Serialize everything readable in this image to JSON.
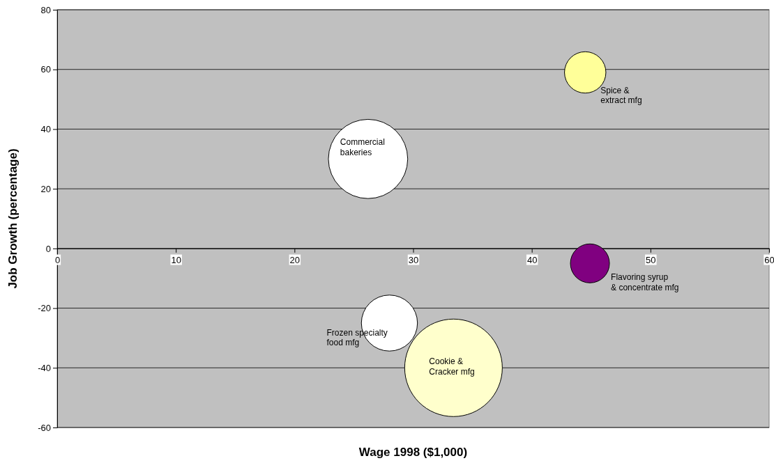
{
  "chart_data": {
    "type": "bubble",
    "xlabel": "Wage 1998 ($1,000)",
    "ylabel": "Job Growth (percentage)",
    "x": [
      44.5,
      26.2,
      44.9,
      28,
      33.4
    ],
    "values": [
      59,
      30,
      -5,
      -25,
      -40
    ],
    "sizes": [
      0.18,
      0.66,
      0.16,
      0.33,
      1
    ],
    "colors": [
      "#ffff99",
      "#ffffff",
      "#800080",
      "#ffffff",
      "#ffffcc"
    ],
    "xlim": [
      0,
      60
    ],
    "xticks": [
      0,
      10,
      20,
      30,
      40,
      50,
      60
    ],
    "ylim": [
      -60,
      80
    ],
    "yticks": [
      -60,
      -40,
      -20,
      0,
      20,
      40,
      60,
      80
    ],
    "grid": "y",
    "annotations": [
      {
        "text": "Spice &\nextract mfg",
        "x": 44.5,
        "y": 59
      },
      {
        "text": "Commercial\nbakeries",
        "x": 26.2,
        "y": 30
      },
      {
        "text": "Flavoring syrup\n& concentrate mfg",
        "x": 44.9,
        "y": -5
      },
      {
        "text": "Frozen specialty\nfood mfg",
        "x": 28,
        "y": -25
      },
      {
        "text": "Cookie &\nCracker mfg",
        "x": 33.4,
        "y": -40
      }
    ]
  }
}
